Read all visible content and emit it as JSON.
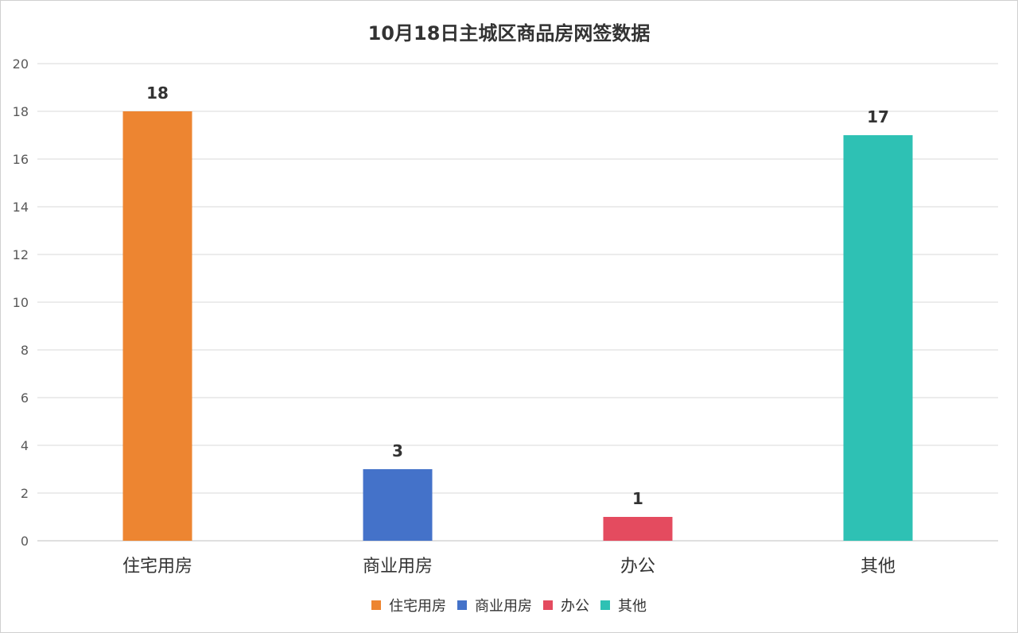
{
  "chart_data": {
    "type": "bar",
    "title": "10月18日主城区商品房网签数据",
    "categories": [
      "住宅用房",
      "商业用房",
      "办公",
      "其他"
    ],
    "values": [
      18,
      3,
      1,
      17
    ],
    "colors": [
      "#ED8531",
      "#4472C9",
      "#E44B5F",
      "#2EC1B4"
    ],
    "ylim": [
      0,
      20
    ],
    "yticks": [
      0,
      2,
      4,
      6,
      8,
      10,
      12,
      14,
      16,
      18,
      20
    ],
    "grid": true,
    "legend_position": "bottom"
  }
}
